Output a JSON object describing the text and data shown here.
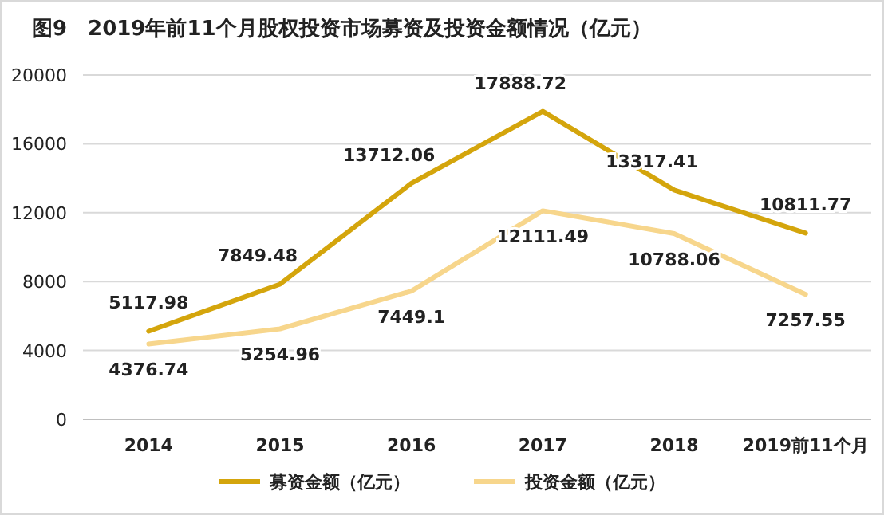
{
  "chart_data": {
    "type": "line",
    "title": "图9　2019年前11个月股权投资市场募资及投资金额情况（亿元）",
    "categories": [
      "2014",
      "2015",
      "2016",
      "2017",
      "2018",
      "2019前11个月"
    ],
    "series": [
      {
        "name": "募资金额（亿元）",
        "color": "#d4a50c",
        "values": [
          5117.98,
          7849.48,
          13712.06,
          17888.72,
          13317.41,
          10811.77
        ]
      },
      {
        "name": "投资金额（亿元）",
        "color": "#f7d68c",
        "values": [
          4376.74,
          5254.96,
          7449.1,
          12111.49,
          10788.06,
          7257.55
        ]
      }
    ],
    "ylim": [
      0,
      20000
    ],
    "yticks": [
      0,
      4000,
      8000,
      12000,
      16000,
      20000
    ],
    "grid": "y",
    "legend": "bottom",
    "data_labels": true,
    "marker": "none",
    "line_style": "solid"
  }
}
